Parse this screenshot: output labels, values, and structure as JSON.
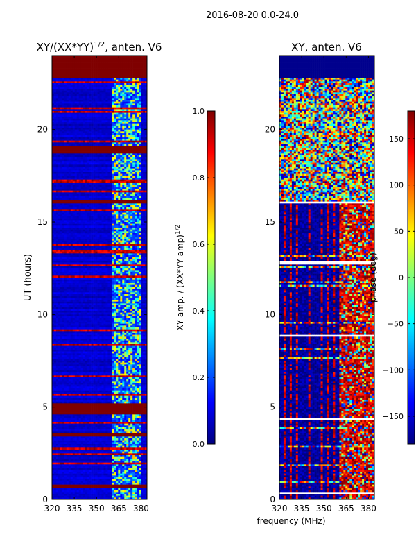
{
  "figure_title": "2016-08-20 0.0-24.0",
  "shared_xlabel": "frequency (MHz)",
  "colors": {
    "jet_stops": [
      "#00007f",
      "#0000ff",
      "#007fff",
      "#00ffff",
      "#7fff7f",
      "#ffff00",
      "#ff7f00",
      "#ff0000",
      "#7f0000"
    ],
    "flag_band": "#7f0000",
    "empty_rows": "#ffffff"
  },
  "chart_data": [
    {
      "type": "heatmap",
      "title_prefix": "XY/(XX*YY)",
      "title_sup": "1/2",
      "title_suffix": ", anten. V6",
      "xlabel": "",
      "ylabel": "UT (hours)",
      "xlim": [
        320,
        384
      ],
      "ylim": [
        0,
        24
      ],
      "xticks": [
        320,
        335,
        350,
        365,
        380
      ],
      "yticks": [
        0,
        5,
        10,
        15,
        20
      ],
      "colorbar": {
        "label_main": "XY amp. / (XX*YY amp)",
        "label_sup": "1/2",
        "range": [
          0.0,
          1.0
        ],
        "ticks": [
          "0.0",
          "0.2",
          "0.4",
          "0.6",
          "0.8",
          "1.0"
        ]
      },
      "description_values": {
        "background_level": 0.08,
        "rfi_band_mhz": [
          361,
          380
        ],
        "rfi_band_level": 0.45,
        "saturated_hours": [
          [
            22.8,
            24.0
          ],
          [
            18.7,
            19.1
          ],
          [
            16.0,
            16.2
          ],
          [
            4.6,
            5.2
          ],
          [
            3.4,
            3.6
          ],
          [
            0.6,
            0.8
          ]
        ]
      }
    },
    {
      "type": "heatmap",
      "title": "XY, anten. V6",
      "xlabel": "frequency (MHz)",
      "ylabel": "",
      "xlim": [
        320,
        384
      ],
      "ylim": [
        0,
        24
      ],
      "xticks": [
        320,
        335,
        350,
        365,
        380
      ],
      "yticks": [
        0,
        5,
        10,
        15,
        20
      ],
      "colorbar": {
        "label_main": "phase (deg)",
        "range": [
          -180,
          180
        ],
        "ticks": [
          "150",
          "100",
          "50",
          "0",
          "−50",
          "−100",
          "−150"
        ]
      },
      "description_values": {
        "background_deg": -170,
        "high_phase_band_mhz": [
          360,
          384
        ],
        "high_phase_deg": 150
      }
    }
  ]
}
